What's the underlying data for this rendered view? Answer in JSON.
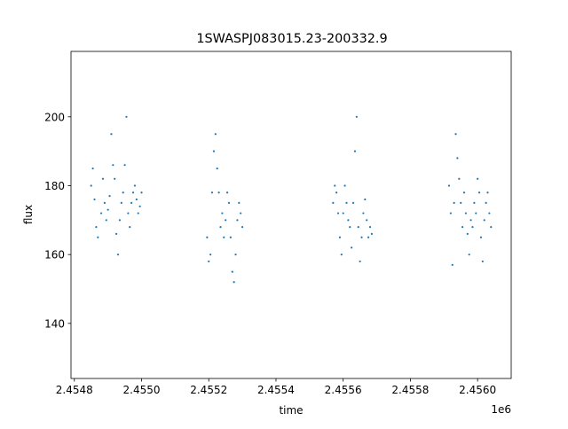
{
  "chart_data": {
    "type": "scatter",
    "title": "1SWASPJ083015.23-200332.9",
    "xlabel": "time",
    "ylabel": "flux",
    "x_offset_label": "1e6",
    "xlim": [
      2454790,
      2456100
    ],
    "ylim": [
      124,
      219
    ],
    "x_ticks": [
      2454800,
      2455000,
      2455200,
      2455400,
      2455600,
      2455800,
      2456000
    ],
    "x_tick_labels": [
      "2.4548",
      "2.4550",
      "2.4552",
      "2.4554",
      "2.4556",
      "2.4558",
      "2.4560"
    ],
    "y_ticks": [
      140,
      160,
      180,
      200
    ],
    "y_tick_labels": [
      "140",
      "160",
      "180",
      "200"
    ],
    "grid": false,
    "marker_color": "#1f77b4",
    "series": [
      {
        "x": [
          2454850,
          2454855,
          2454860,
          2454865,
          2454870,
          2454880,
          2454885,
          2454890,
          2454895,
          2454900,
          2454905,
          2454910,
          2454915,
          2454920,
          2454925,
          2454930,
          2454935,
          2454940,
          2454945,
          2454950,
          2454955,
          2454960,
          2454965,
          2454970,
          2454975,
          2454980,
          2454985,
          2454990,
          2454995,
          2455000
        ],
        "y": [
          180,
          185,
          176,
          168,
          165,
          172,
          182,
          175,
          170,
          173,
          177,
          195,
          186,
          182,
          166,
          160,
          170,
          175,
          178,
          186,
          200,
          172,
          168,
          175,
          178,
          180,
          176,
          172,
          174,
          178
        ]
      },
      {
        "x": [
          2455195,
          2455200,
          2455205,
          2455210,
          2455215,
          2455220,
          2455225,
          2455230,
          2455235,
          2455240,
          2455245,
          2455250,
          2455255,
          2455260,
          2455265,
          2455270,
          2455275,
          2455280,
          2455285,
          2455290,
          2455295,
          2455300
        ],
        "y": [
          165,
          158,
          160,
          178,
          190,
          195,
          185,
          178,
          168,
          172,
          165,
          170,
          178,
          175,
          165,
          155,
          152,
          160,
          170,
          175,
          172,
          168
        ]
      },
      {
        "x": [
          2455570,
          2455575,
          2455580,
          2455585,
          2455590,
          2455595,
          2455600,
          2455605,
          2455610,
          2455615,
          2455620,
          2455625,
          2455630,
          2455635,
          2455640,
          2455645,
          2455650,
          2455655,
          2455660,
          2455665,
          2455670,
          2455675,
          2455680,
          2455685
        ],
        "y": [
          175,
          180,
          178,
          172,
          165,
          160,
          172,
          180,
          175,
          170,
          168,
          162,
          175,
          190,
          200,
          168,
          158,
          165,
          172,
          176,
          170,
          165,
          168,
          166
        ]
      },
      {
        "x": [
          2455915,
          2455920,
          2455925,
          2455930,
          2455935,
          2455940,
          2455945,
          2455950,
          2455955,
          2455960,
          2455965,
          2455970,
          2455975,
          2455980,
          2455985,
          2455990,
          2455995,
          2456000,
          2456005,
          2456010,
          2456015,
          2456020,
          2456025,
          2456030,
          2456035,
          2456040
        ],
        "y": [
          180,
          172,
          157,
          175,
          195,
          188,
          182,
          175,
          168,
          178,
          172,
          166,
          160,
          170,
          168,
          175,
          172,
          182,
          178,
          165,
          158,
          170,
          175,
          178,
          172,
          168
        ]
      }
    ]
  }
}
